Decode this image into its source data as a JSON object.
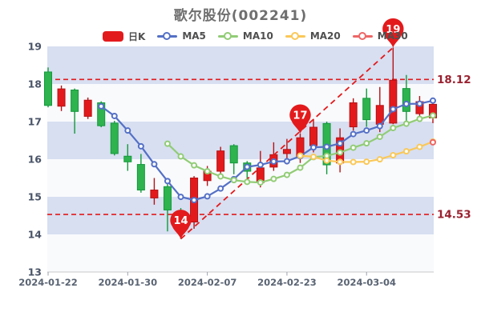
{
  "title": "歌尔股份(002241)",
  "legend": {
    "items": [
      {
        "label": "日K",
        "marker": "rect",
        "color": "#e31a1c"
      },
      {
        "label": "MA5",
        "marker": "line-circle",
        "color": "#5470c6"
      },
      {
        "label": "MA10",
        "marker": "line-circle",
        "color": "#91cc75"
      },
      {
        "label": "MA20",
        "marker": "line-circle",
        "color": "#fac858"
      },
      {
        "label": "MA30",
        "marker": "line-circle",
        "color": "#ee6666"
      }
    ]
  },
  "chart_data": {
    "type": "candlestick",
    "title": "歌尔股份(002241)",
    "ylim": [
      13,
      19
    ],
    "y_ticks": [
      19,
      18,
      17,
      16,
      15,
      14,
      13
    ],
    "x_ticks": [
      {
        "index": 0,
        "label": "2024-01-22"
      },
      {
        "index": 6,
        "label": "2024-01-30"
      },
      {
        "index": 12,
        "label": "2024-02-07"
      },
      {
        "index": 18,
        "label": "2024-02-23"
      },
      {
        "index": 24,
        "label": "2024-03-04"
      }
    ],
    "candles": [
      {
        "open": 18.32,
        "close": 17.43,
        "high": 18.44,
        "low": 17.38
      },
      {
        "open": 17.41,
        "close": 17.87,
        "high": 17.96,
        "low": 17.28
      },
      {
        "open": 17.84,
        "close": 17.27,
        "high": 17.88,
        "low": 16.68
      },
      {
        "open": 17.14,
        "close": 17.57,
        "high": 17.64,
        "low": 17.07
      },
      {
        "open": 17.5,
        "close": 16.89,
        "high": 17.54,
        "low": 16.85
      },
      {
        "open": 16.96,
        "close": 16.15,
        "high": 17.02,
        "low": 16.1
      },
      {
        "open": 16.08,
        "close": 15.93,
        "high": 16.4,
        "low": 15.69
      },
      {
        "open": 15.86,
        "close": 15.18,
        "high": 16.14,
        "low": 15.11
      },
      {
        "open": 14.97,
        "close": 15.18,
        "high": 15.5,
        "low": 14.79
      },
      {
        "open": 15.27,
        "close": 14.65,
        "high": 15.4,
        "low": 14.08
      },
      {
        "open": 14.62,
        "close": 14.05,
        "high": 14.7,
        "low": 13.88
      },
      {
        "open": 14.33,
        "close": 15.5,
        "high": 15.55,
        "low": 14.15
      },
      {
        "open": 15.43,
        "close": 15.68,
        "high": 15.82,
        "low": 15.29
      },
      {
        "open": 15.68,
        "close": 16.22,
        "high": 16.33,
        "low": 15.58
      },
      {
        "open": 16.36,
        "close": 15.9,
        "high": 16.4,
        "low": 15.6
      },
      {
        "open": 15.9,
        "close": 15.68,
        "high": 15.95,
        "low": 15.48
      },
      {
        "open": 15.38,
        "close": 15.77,
        "high": 16.22,
        "low": 15.25
      },
      {
        "open": 15.79,
        "close": 16.12,
        "high": 16.45,
        "low": 15.69
      },
      {
        "open": 16.15,
        "close": 16.26,
        "high": 16.54,
        "low": 15.86
      },
      {
        "open": 16.07,
        "close": 16.57,
        "high": 16.68,
        "low": 15.9
      },
      {
        "open": 16.36,
        "close": 16.85,
        "high": 17.07,
        "low": 16.18
      },
      {
        "open": 16.95,
        "close": 15.85,
        "high": 17.0,
        "low": 15.6
      },
      {
        "open": 15.9,
        "close": 16.57,
        "high": 16.82,
        "low": 15.65
      },
      {
        "open": 16.86,
        "close": 17.5,
        "high": 17.62,
        "low": 16.76
      },
      {
        "open": 17.62,
        "close": 17.05,
        "high": 17.88,
        "low": 16.86
      },
      {
        "open": 16.93,
        "close": 17.43,
        "high": 17.92,
        "low": 16.72
      },
      {
        "open": 16.96,
        "close": 18.1,
        "high": 18.97,
        "low": 16.93
      },
      {
        "open": 17.88,
        "close": 17.27,
        "high": 18.24,
        "low": 16.93
      },
      {
        "open": 17.21,
        "close": 17.53,
        "high": 17.68,
        "low": 17.07
      },
      {
        "open": 17.1,
        "close": 17.46,
        "high": 17.57,
        "low": 16.96
      }
    ],
    "moving_averages": [
      {
        "name": "MA5",
        "window": 5,
        "color": "#5470c6"
      },
      {
        "name": "MA10",
        "window": 10,
        "color": "#91cc75"
      },
      {
        "name": "MA20",
        "window": 20,
        "color": "#fac858"
      },
      {
        "name": "MA30",
        "window": 30,
        "color": "#ee6666"
      }
    ],
    "levels": [
      {
        "label": "18.12",
        "value": 18.12
      },
      {
        "label": "14.53",
        "value": 14.53
      }
    ],
    "pins": [
      {
        "label": "14",
        "candle_index": 10,
        "anchor": "low"
      },
      {
        "label": "17",
        "candle_index": 19,
        "anchor": "high"
      },
      {
        "label": "19",
        "candle_index": 26,
        "anchor": "high"
      }
    ],
    "trendline": {
      "from": {
        "candle_index": 10,
        "anchor": "low"
      },
      "to": {
        "candle_index": 26,
        "anchor": "high"
      }
    },
    "colors": {
      "up": "#e31a1c",
      "up_border": "#b51215",
      "down": "#2eb34f",
      "down_border": "#13993b",
      "band": "#d7dff1",
      "band_alt": "#f9fafc",
      "red_line": "#e31a1c",
      "level_label": "#9a2130",
      "axis_text": "#4a5468",
      "date_text": "#5a6473",
      "axis_line": "#c8c8c8"
    }
  }
}
